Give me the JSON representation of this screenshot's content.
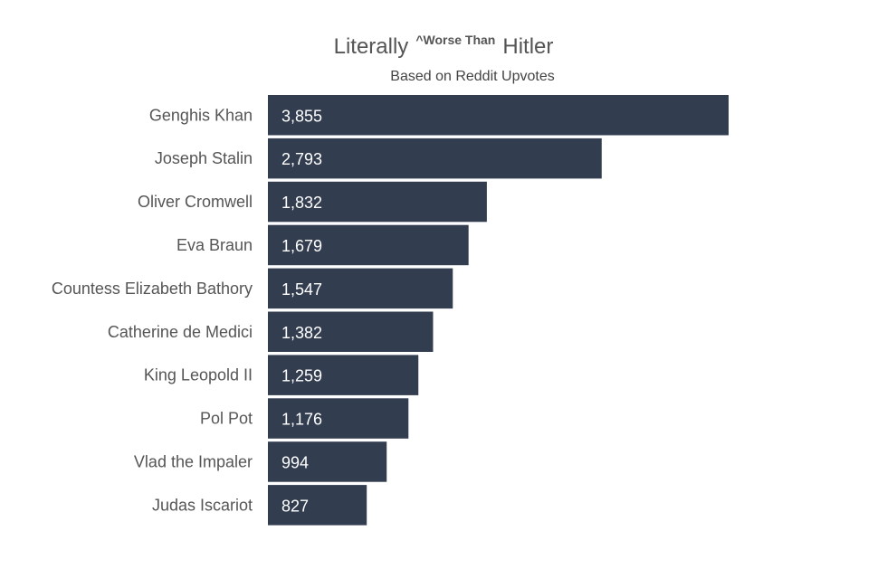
{
  "chart_data": {
    "type": "bar",
    "orientation": "horizontal",
    "title": {
      "part1": "Literally",
      "superscript": "^Worse Than",
      "part2": "Hitler"
    },
    "subtitle": "Based on Reddit Upvotes",
    "categories": [
      "Genghis Khan",
      "Joseph Stalin",
      "Oliver Cromwell",
      "Eva Braun",
      "Countess Elizabeth Bathory",
      "Catherine de Medici",
      "King Leopold II",
      "Pol Pot",
      "Vlad the Impaler",
      "Judas Iscariot"
    ],
    "values": [
      3855,
      2793,
      1832,
      1679,
      1547,
      1382,
      1259,
      1176,
      994,
      827
    ],
    "value_labels": [
      "3,855",
      "2,793",
      "1,832",
      "1,679",
      "1,547",
      "1,382",
      "1,259",
      "1,176",
      "994",
      "827"
    ],
    "xlim": [
      0,
      3855
    ],
    "bar_color": "#333d50",
    "label_color": "#ffffff",
    "category_label_color": "#555555",
    "grid": false,
    "legend": "none"
  }
}
